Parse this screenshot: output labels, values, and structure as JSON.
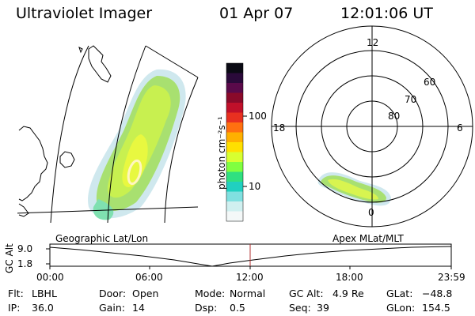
{
  "header": {
    "instrument": "Ultraviolet Imager",
    "date": "01 Apr 07",
    "time": "12:01:06 UT"
  },
  "colorbar": {
    "unit_label": "photon cm⁻²s⁻¹",
    "ticks": [
      "100",
      "10"
    ],
    "colors_top_to_bottom": [
      "#0a0a14",
      "#2a0a3a",
      "#5a0a4a",
      "#8a0a2a",
      "#c0102a",
      "#e83020",
      "#ff7010",
      "#ffb000",
      "#ffe000",
      "#d8ff30",
      "#80ff40",
      "#30e080",
      "#20d0c0",
      "#80e0e0",
      "#d0f0f0",
      "#f4f8f8"
    ]
  },
  "polar_plot": {
    "hour_labels": {
      "top": "12",
      "left": "18",
      "right": "6",
      "bottom": "0"
    },
    "lat_labels": [
      "60",
      "70",
      "80"
    ]
  },
  "timeline": {
    "left_title": "Geographic Lat/Lon",
    "right_title": "Apex MLat/MLT",
    "axis_label": "GC Alt",
    "y_ticks": [
      "9.0",
      "1.8"
    ],
    "x_ticks": [
      "00:00",
      "06:00",
      "12:00",
      "18:00",
      "23:59"
    ]
  },
  "info_rows": [
    [
      {
        "label": "Flt:",
        "value": "LBHL"
      },
      {
        "label": "Door:",
        "value": "Open"
      },
      {
        "label": "Mode:",
        "value": "Normal"
      },
      {
        "label": "GC Alt:",
        "value": "4.9 Re"
      },
      {
        "label": "GLat:",
        "value": "−48.8"
      }
    ],
    [
      {
        "label": "IP:",
        "value": "36.0"
      },
      {
        "label": "Gain:",
        "value": "14"
      },
      {
        "label": "Dsp:",
        "value": "0.5"
      },
      {
        "label": "Seq:",
        "value": "39"
      },
      {
        "label": "GLon:",
        "value": "154.5"
      }
    ]
  ]
}
